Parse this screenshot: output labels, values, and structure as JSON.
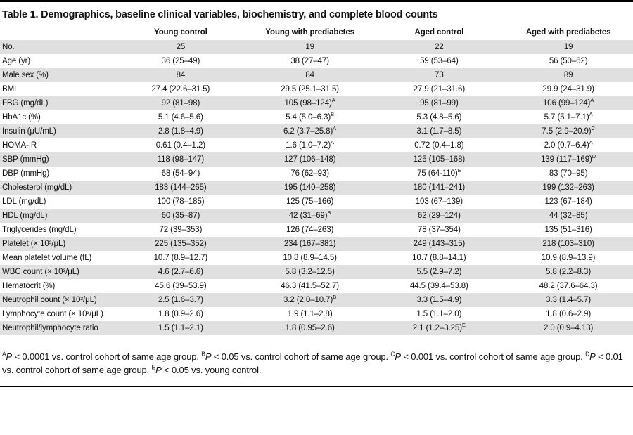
{
  "title": "Table 1. Demographics, baseline clinical variables, biochemistry, and complete blood counts",
  "columns": [
    "Young control",
    "Young with prediabetes",
    "Aged control",
    "Aged with prediabetes"
  ],
  "rows": [
    {
      "label": "No.",
      "values": [
        "25",
        "19",
        "22",
        "19"
      ]
    },
    {
      "label": "Age (yr)",
      "values": [
        "36 (25–49)",
        "38 (27–47)",
        "59 (53–64)",
        "56 (50–62)"
      ]
    },
    {
      "label": "Male sex (%)",
      "values": [
        "84",
        "84",
        "73",
        "89"
      ]
    },
    {
      "label": "BMI",
      "values": [
        "27.4 (22.6–31.5)",
        "29.5 (25.1–31.5)",
        "27.9 (21–31.6)",
        "29.9 (24–31.9)"
      ]
    },
    {
      "label": "FBG (mg/dL)",
      "values": [
        "92 (81–98)",
        "105 (98–124)^A",
        "95 (81–99)",
        "106 (99–124)^A"
      ]
    },
    {
      "label": "HbA1c (%)",
      "values": [
        "5.1 (4.6–5.6)",
        "5.4 (5.0–6.3)^B",
        "5.3 (4.8–5.6)",
        "5.7 (5.1–7.1)^A"
      ]
    },
    {
      "label": "Insulin (μU/mL)",
      "values": [
        "2.8 (1.8–4.9)",
        "6.2 (3.7–25.8)^A",
        "3.1 (1.7–8.5)",
        "7.5 (2.9–20.9)^C"
      ]
    },
    {
      "label": "HOMA-IR",
      "values": [
        "0.61 (0.4–1.2)",
        "1.6 (1.0–7.2)^A",
        "0.72 (0.4–1.8)",
        "2.0 (0.7–6.4)^A"
      ]
    },
    {
      "label": "SBP (mmHg)",
      "values": [
        "118 (98–147)",
        "127 (106–148)",
        "125 (105–168)",
        "139 (117–169)^D"
      ]
    },
    {
      "label": "DBP (mmHg)",
      "values": [
        "68 (54–94)",
        "76 (62–93)",
        "75 (64-110)^E",
        "83 (70–95)"
      ]
    },
    {
      "label": "Cholesterol (mg/dL)",
      "values": [
        "183 (144–265)",
        "195 (140–258)",
        "180 (141–241)",
        "199 (132–263)"
      ]
    },
    {
      "label": "LDL (mg/dL)",
      "values": [
        "100 (78–185)",
        "125 (75–166)",
        "103 (67–139)",
        "123 (67–184)"
      ]
    },
    {
      "label": "HDL (mg/dL)",
      "values": [
        "60 (35–87)",
        "42 (31–69)^B",
        "62 (29–124)",
        "44 (32–85)"
      ]
    },
    {
      "label": "Triglycerides (mg/dL)",
      "values": [
        "72 (39–353)",
        "126 (74–263)",
        "78 (37–354)",
        "135 (51–316)"
      ]
    },
    {
      "label": "Platelet (× 10³/μL)",
      "values": [
        "225 (135–352)",
        "234 (167–381)",
        "249 (143–315)",
        "218 (103–310)"
      ]
    },
    {
      "label": "Mean platelet volume (fL)",
      "values": [
        "10.7 (8.9–12.7)",
        "10.8 (8.9–14.5)",
        "10.7 (8.8–14.1)",
        "10.9 (8.9–13.9)"
      ]
    },
    {
      "label": "WBC count (× 10³/μL)",
      "values": [
        "4.6 (2.7–6.6)",
        "5.8 (3.2–12.5)",
        "5.5 (2.9–7.2)",
        "5.8 (2.2–8.3)"
      ]
    },
    {
      "label": "Hematocrit (%)",
      "values": [
        "45.6 (39–53.9)",
        "46.3 (41.5–52.7)",
        "44.5 (39.4–53.8)",
        "48.2 (37.6–64.3)"
      ]
    },
    {
      "label": "Neutrophil count (× 10³/μL)",
      "values": [
        "2.5 (1.6–3.7)",
        "3.2 (2.0–10.7)^B",
        "3.3 (1.5–4.9)",
        "3.3 (1.4–5.7)"
      ]
    },
    {
      "label": "Lymphocyte count (× 10³/μL)",
      "values": [
        "1.8 (0.9–2.6)",
        "1.9 (1.1–2.8)",
        "1.5 (1.1–2.0)",
        "1.8 (0.6–2.9)"
      ]
    },
    {
      "label": "Neutrophil/lymphocyte ratio",
      "values": [
        "1.5 (1.1–2.1)",
        "1.8 (0.95–2.6)",
        "2.1 (1.2–3.25)^E",
        "2.0 (0.9–4.13)"
      ]
    }
  ],
  "footnotes": [
    {
      "sup": "A",
      "p": "P",
      "text": " < 0.0001 vs. control cohort of same age group."
    },
    {
      "sup": "B",
      "p": "P",
      "text": " < 0.05 vs. control cohort of same age group."
    },
    {
      "sup": "C",
      "p": "P",
      "text": " < 0.001 vs. control cohort of same age group."
    },
    {
      "sup": "D",
      "p": "P",
      "text": " < 0.01 vs. control cohort of same age group."
    },
    {
      "sup": "E",
      "p": "P",
      "text": " < 0.05 vs. young control."
    }
  ],
  "colors": {
    "band": "#e0e0e0",
    "rule": "#000000",
    "text": "#111111"
  }
}
